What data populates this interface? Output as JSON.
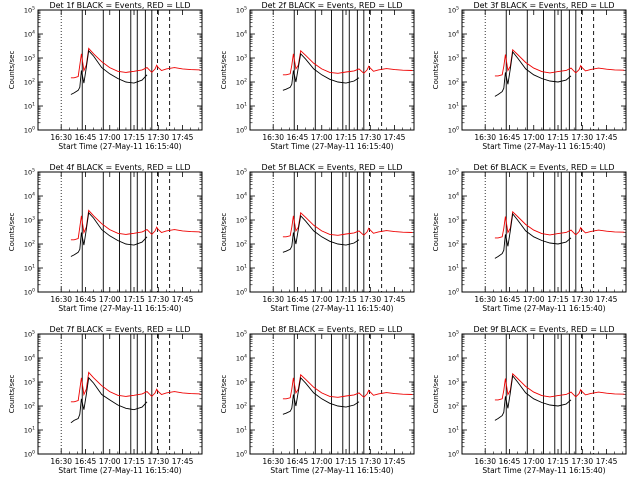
{
  "chart_data": {
    "type": "line",
    "layout": "3x3 grid",
    "shared": {
      "xlabel": "Start Time (27-May-11 16:15:40)",
      "ylabel": "Counts/sec",
      "x_ticks": [
        "16:30",
        "16:45",
        "17:00",
        "17:15",
        "17:30",
        "17:45"
      ],
      "x_tick_minutes": [
        30,
        45,
        60,
        75,
        90,
        105
      ],
      "xlim_minutes": [
        15.67,
        117
      ],
      "y_scale": "log",
      "ylim": [
        1,
        100000
      ],
      "y_ticks": [
        "10^0",
        "10^1",
        "10^2",
        "10^3",
        "10^4",
        "10^5"
      ],
      "y_tick_exponents": [
        0,
        1,
        2,
        3,
        4,
        5
      ],
      "series_colors": {
        "events": "#000000",
        "lld": "#ee0000"
      },
      "dotted_marker_minute": 30,
      "solid_markers_minutes": [
        43,
        56,
        66,
        73,
        77,
        82,
        86
      ],
      "dashed_markers_minutes": [
        89.5,
        97
      ],
      "time_minutes": [
        36.0,
        38.0,
        40.5,
        41.5,
        42.5,
        44.0,
        45.5,
        47.0,
        50.0,
        55.0,
        60.0,
        65.0,
        70.0,
        75.0,
        80.0,
        83.0,
        86.0,
        88.0,
        89.0,
        90.0,
        92.0,
        95.0,
        100.0,
        105.0,
        110.0,
        116.0
      ]
    },
    "panels": [
      {
        "title": "Det 1f BLACK = Events, RED = LLD",
        "events": [
          30,
          35,
          45,
          60,
          300,
          90,
          400,
          2000,
          1200,
          400,
          220,
          140,
          100,
          90,
          120,
          200,
          null,
          null,
          null,
          null,
          null,
          null,
          null,
          null,
          null,
          null
        ],
        "lld": [
          150,
          150,
          170,
          500,
          1500,
          300,
          500,
          2500,
          1500,
          700,
          400,
          280,
          250,
          280,
          320,
          400,
          250,
          350,
          500,
          400,
          300,
          350,
          400,
          350,
          330,
          320
        ]
      },
      {
        "title": "Det 2f BLACK = Events, RED = LLD",
        "events": [
          45,
          50,
          60,
          80,
          300,
          100,
          400,
          1500,
          900,
          350,
          200,
          130,
          100,
          90,
          110,
          150,
          null,
          null,
          null,
          null,
          null,
          null,
          null,
          null,
          null,
          null
        ],
        "lld": [
          200,
          200,
          220,
          500,
          1500,
          350,
          500,
          2000,
          1300,
          600,
          350,
          250,
          230,
          260,
          290,
          350,
          230,
          320,
          450,
          380,
          280,
          320,
          360,
          330,
          310,
          300
        ]
      },
      {
        "title": "Det 3f BLACK = Events, RED = LLD",
        "events": [
          25,
          30,
          40,
          55,
          250,
          80,
          350,
          1800,
          1000,
          350,
          200,
          140,
          110,
          100,
          120,
          180,
          null,
          null,
          null,
          null,
          null,
          null,
          null,
          null,
          null,
          null
        ],
        "lld": [
          180,
          180,
          200,
          450,
          1400,
          300,
          450,
          2200,
          1400,
          650,
          380,
          270,
          240,
          270,
          300,
          380,
          240,
          330,
          480,
          390,
          290,
          330,
          380,
          340,
          320,
          310
        ]
      },
      {
        "title": "Det 4f BLACK = Events, RED = LLD",
        "events": [
          30,
          35,
          45,
          60,
          300,
          90,
          400,
          2000,
          1200,
          400,
          220,
          140,
          100,
          90,
          120,
          200,
          null,
          null,
          null,
          null,
          null,
          null,
          null,
          null,
          null,
          null
        ],
        "lld": [
          150,
          150,
          170,
          500,
          1500,
          300,
          500,
          2500,
          1500,
          700,
          400,
          280,
          250,
          280,
          320,
          400,
          250,
          350,
          500,
          400,
          300,
          350,
          400,
          350,
          330,
          320
        ]
      },
      {
        "title": "Det 5f BLACK = Events, RED = LLD",
        "events": [
          45,
          50,
          60,
          80,
          300,
          100,
          400,
          1500,
          900,
          350,
          200,
          130,
          100,
          90,
          110,
          150,
          null,
          null,
          null,
          null,
          null,
          null,
          null,
          null,
          null,
          null
        ],
        "lld": [
          200,
          200,
          220,
          500,
          1500,
          350,
          500,
          2000,
          1300,
          600,
          350,
          250,
          230,
          260,
          290,
          350,
          230,
          320,
          450,
          380,
          280,
          320,
          360,
          330,
          310,
          300
        ]
      },
      {
        "title": "Det 6f BLACK = Events, RED = LLD",
        "events": [
          25,
          30,
          40,
          55,
          250,
          80,
          350,
          1800,
          1000,
          350,
          200,
          140,
          110,
          100,
          120,
          180,
          null,
          null,
          null,
          null,
          null,
          null,
          null,
          null,
          null,
          null
        ],
        "lld": [
          180,
          180,
          200,
          450,
          1400,
          300,
          450,
          2200,
          1400,
          650,
          380,
          270,
          240,
          270,
          300,
          380,
          240,
          330,
          480,
          390,
          290,
          330,
          380,
          340,
          320,
          310
        ]
      },
      {
        "title": "Det 7f BLACK = Events, RED = LLD",
        "events": [
          20,
          25,
          30,
          45,
          200,
          70,
          300,
          1500,
          900,
          300,
          180,
          110,
          80,
          70,
          90,
          150,
          null,
          null,
          null,
          null,
          null,
          null,
          null,
          null,
          null,
          null
        ],
        "lld": [
          150,
          150,
          170,
          500,
          1500,
          300,
          500,
          2500,
          1500,
          700,
          400,
          280,
          250,
          280,
          320,
          400,
          250,
          350,
          500,
          400,
          300,
          350,
          400,
          350,
          330,
          320
        ]
      },
      {
        "title": "Det 8f BLACK = Events, RED = LLD",
        "events": [
          45,
          50,
          60,
          80,
          300,
          100,
          400,
          1500,
          900,
          350,
          200,
          130,
          100,
          90,
          110,
          150,
          null,
          null,
          null,
          null,
          null,
          null,
          null,
          null,
          null,
          null
        ],
        "lld": [
          200,
          200,
          220,
          500,
          1500,
          350,
          500,
          2000,
          1300,
          600,
          350,
          250,
          230,
          260,
          290,
          350,
          230,
          320,
          450,
          380,
          280,
          320,
          360,
          330,
          310,
          300
        ]
      },
      {
        "title": "Det 9f BLACK = Events, RED = LLD",
        "events": [
          25,
          30,
          40,
          55,
          250,
          80,
          350,
          1800,
          1000,
          350,
          200,
          140,
          110,
          100,
          120,
          180,
          null,
          null,
          null,
          null,
          null,
          null,
          null,
          null,
          null,
          null
        ],
        "lld": [
          180,
          180,
          200,
          450,
          1400,
          300,
          450,
          2200,
          1400,
          650,
          380,
          270,
          240,
          270,
          300,
          380,
          240,
          330,
          480,
          390,
          290,
          330,
          380,
          340,
          320,
          310
        ]
      }
    ]
  }
}
